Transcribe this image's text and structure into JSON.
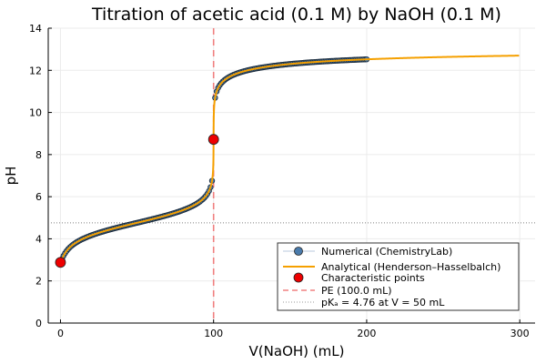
{
  "chart_data": {
    "type": "line",
    "title": "Titration of acetic acid (0.1 M) by NaOH (0.1 M)",
    "xlabel": "V(NaOH) (mL)",
    "ylabel": "pH",
    "xlim": [
      -8,
      310
    ],
    "ylim": [
      0,
      14
    ],
    "xticks": [
      0,
      100,
      200,
      300
    ],
    "yticks": [
      0,
      2,
      4,
      6,
      8,
      10,
      12,
      14
    ],
    "grid": true,
    "legend_position": "bottom-right",
    "params": {
      "c_acid": 0.1,
      "c_base": 0.1,
      "V_acid": 100,
      "pKa": 4.76
    },
    "series": [
      {
        "name": "Numerical (ChemistryLab)",
        "kind": "scatter",
        "color": "#4a7bac",
        "x_range": [
          0,
          200
        ],
        "step": 1
      },
      {
        "name": "Analytical (Henderson–Hasselbalch)",
        "kind": "line",
        "color": "#f5a000",
        "x_range": [
          0,
          300
        ]
      },
      {
        "name": "Characteristic points",
        "kind": "scatter",
        "color": "#ee0000",
        "points": [
          {
            "x": 0,
            "y": 2.88
          },
          {
            "x": 100,
            "y": 8.72
          }
        ]
      },
      {
        "name": "PE (100.0 mL)",
        "kind": "vline",
        "x": 100,
        "color": "#f08080",
        "style": "dashed"
      },
      {
        "name": "pKₐ = 4.76 at V = 50 mL",
        "kind": "hline",
        "y": 4.76,
        "color": "#808080",
        "style": "dotted"
      }
    ],
    "sample_values": [
      {
        "x": 0,
        "y": 2.88
      },
      {
        "x": 10,
        "y": 3.81
      },
      {
        "x": 25,
        "y": 4.28
      },
      {
        "x": 50,
        "y": 4.76
      },
      {
        "x": 75,
        "y": 5.24
      },
      {
        "x": 90,
        "y": 5.71
      },
      {
        "x": 99,
        "y": 6.76
      },
      {
        "x": 100,
        "y": 8.72
      },
      {
        "x": 101,
        "y": 10.7
      },
      {
        "x": 110,
        "y": 11.68
      },
      {
        "x": 150,
        "y": 12.3
      },
      {
        "x": 200,
        "y": 12.52
      },
      {
        "x": 300,
        "y": 12.7
      }
    ]
  },
  "legend": {
    "items": [
      "Numerical (ChemistryLab)",
      "Analytical (Henderson–Hasselbalch)",
      "Characteristic points",
      "PE (100.0 mL)",
      "pKₐ = 4.76 at V = 50 mL"
    ]
  }
}
